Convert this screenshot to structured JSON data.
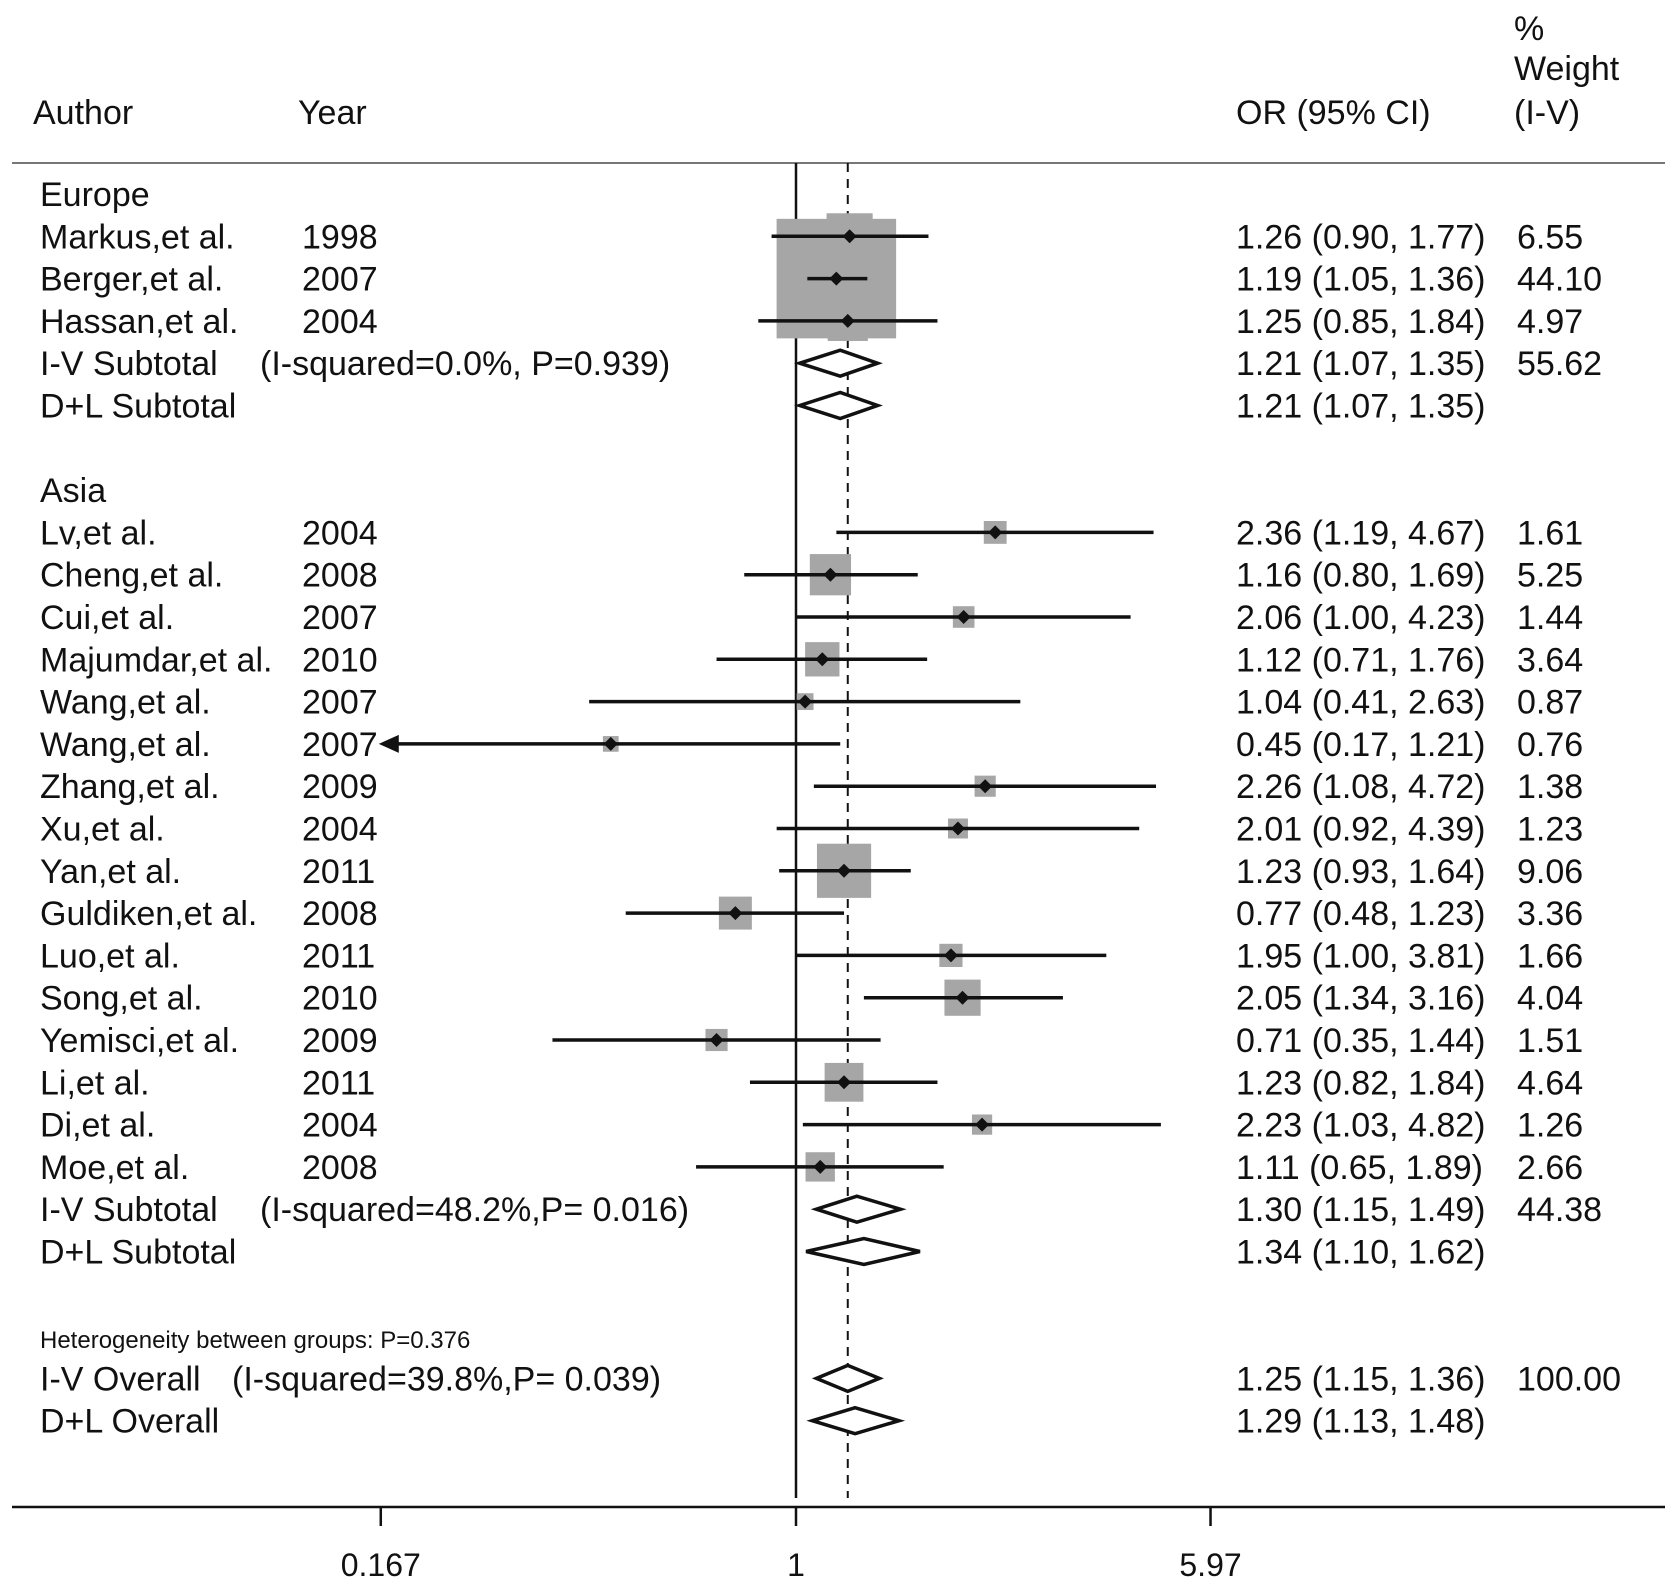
{
  "header": {
    "author": "Author",
    "year": "Year",
    "or_ci": "OR (95% CI)",
    "weight_line1": "%",
    "weight_line2": "Weight",
    "weight_line3": "(I-V)"
  },
  "colors": {
    "ink": "#111111",
    "weight_box": "#a6a6a6",
    "background": "#ffffff"
  },
  "chart_data": {
    "type": "forest",
    "x_scale": "log",
    "xlim": [
      0.167,
      5.97
    ],
    "x_ticks": [
      0.167,
      1,
      5.97
    ],
    "x_tick_labels": [
      "0.167",
      "1",
      "5.97"
    ],
    "null_line": 1,
    "overall_line": 1.25,
    "rows": [
      {
        "kind": "group",
        "label": "Europe"
      },
      {
        "kind": "study",
        "author": "Markus,et al.",
        "year": "1998",
        "or": 1.26,
        "lo": 0.9,
        "hi": 1.77,
        "weight": 6.55,
        "or_text": "1.26 (0.90, 1.77)",
        "weight_text": "6.55"
      },
      {
        "kind": "study",
        "author": "Berger,et al.",
        "year": "2007",
        "or": 1.19,
        "lo": 1.05,
        "hi": 1.36,
        "weight": 44.1,
        "or_text": "1.19 (1.05, 1.36)",
        "weight_text": "44.10"
      },
      {
        "kind": "study",
        "author": "Hassan,et al.",
        "year": "2004",
        "or": 1.25,
        "lo": 0.85,
        "hi": 1.84,
        "weight": 4.97,
        "or_text": "1.25 (0.85, 1.84)",
        "weight_text": "4.97"
      },
      {
        "kind": "summary",
        "label": "I-V Subtotal",
        "stat": "(I-squared=0.0%,  P=0.939)",
        "or": 1.21,
        "lo": 1.07,
        "hi": 1.35,
        "or_text": "1.21 (1.07, 1.35)",
        "weight_text": "55.62"
      },
      {
        "kind": "summary",
        "label": "D+L Subtotal",
        "stat": "",
        "or": 1.21,
        "lo": 1.07,
        "hi": 1.35,
        "or_text": "1.21 (1.07, 1.35)",
        "weight_text": ""
      },
      {
        "kind": "blank"
      },
      {
        "kind": "group",
        "label": "Asia"
      },
      {
        "kind": "study",
        "author": "Lv,et al.",
        "year": "2004",
        "or": 2.36,
        "lo": 1.19,
        "hi": 4.67,
        "weight": 1.61,
        "or_text": "2.36 (1.19, 4.67)",
        "weight_text": "1.61"
      },
      {
        "kind": "study",
        "author": "Cheng,et al.",
        "year": "2008",
        "or": 1.16,
        "lo": 0.8,
        "hi": 1.69,
        "weight": 5.25,
        "or_text": "1.16 (0.80, 1.69)",
        "weight_text": "5.25"
      },
      {
        "kind": "study",
        "author": "Cui,et al.",
        "year": "2007",
        "or": 2.06,
        "lo": 1.0,
        "hi": 4.23,
        "weight": 1.44,
        "or_text": "2.06 (1.00, 4.23)",
        "weight_text": "1.44"
      },
      {
        "kind": "study",
        "author": "Majumdar,et al.",
        "year": "2010",
        "or": 1.12,
        "lo": 0.71,
        "hi": 1.76,
        "weight": 3.64,
        "or_text": "1.12 (0.71, 1.76)",
        "weight_text": "3.64"
      },
      {
        "kind": "study",
        "author": "Wang,et al.",
        "year": "2007",
        "or": 1.04,
        "lo": 0.41,
        "hi": 2.63,
        "weight": 0.87,
        "or_text": "1.04 (0.41, 2.63)",
        "weight_text": "0.87"
      },
      {
        "kind": "study",
        "author": "Wang,et al.",
        "year": "2007",
        "or": 0.45,
        "lo": 0.17,
        "hi": 1.21,
        "weight": 0.76,
        "or_text": "0.45 (0.17, 1.21)",
        "weight_text": "0.76",
        "arrow_left": true
      },
      {
        "kind": "study",
        "author": "Zhang,et al.",
        "year": "2009",
        "or": 2.26,
        "lo": 1.08,
        "hi": 4.72,
        "weight": 1.38,
        "or_text": "2.26 (1.08, 4.72)",
        "weight_text": "1.38"
      },
      {
        "kind": "study",
        "author": "Xu,et al.",
        "year": "2004",
        "or": 2.01,
        "lo": 0.92,
        "hi": 4.39,
        "weight": 1.23,
        "or_text": "2.01 (0.92, 4.39)",
        "weight_text": "1.23"
      },
      {
        "kind": "study",
        "author": "Yan,et al.",
        "year": "2011",
        "or": 1.23,
        "lo": 0.93,
        "hi": 1.64,
        "weight": 9.06,
        "or_text": "1.23 (0.93, 1.64)",
        "weight_text": "9.06"
      },
      {
        "kind": "study",
        "author": "Guldiken,et al.",
        "year": "2008",
        "or": 0.77,
        "lo": 0.48,
        "hi": 1.23,
        "weight": 3.36,
        "or_text": "0.77 (0.48, 1.23)",
        "weight_text": "3.36"
      },
      {
        "kind": "study",
        "author": "Luo,et al.",
        "year": "2011",
        "or": 1.95,
        "lo": 1.0,
        "hi": 3.81,
        "weight": 1.66,
        "or_text": "1.95 (1.00, 3.81)",
        "weight_text": "1.66"
      },
      {
        "kind": "study",
        "author": "Song,et al.",
        "year": "2010",
        "or": 2.05,
        "lo": 1.34,
        "hi": 3.16,
        "weight": 4.04,
        "or_text": "2.05 (1.34, 3.16)",
        "weight_text": "4.04"
      },
      {
        "kind": "study",
        "author": "Yemisci,et al.",
        "year": "2009",
        "or": 0.71,
        "lo": 0.35,
        "hi": 1.44,
        "weight": 1.51,
        "or_text": "0.71 (0.35, 1.44)",
        "weight_text": "1.51"
      },
      {
        "kind": "study",
        "author": "Li,et al.",
        "year": "2011",
        "or": 1.23,
        "lo": 0.82,
        "hi": 1.84,
        "weight": 4.64,
        "or_text": "1.23 (0.82, 1.84)",
        "weight_text": "4.64"
      },
      {
        "kind": "study",
        "author": "Di,et al.",
        "year": "2004",
        "or": 2.23,
        "lo": 1.03,
        "hi": 4.82,
        "weight": 1.26,
        "or_text": "2.23 (1.03, 4.82)",
        "weight_text": "1.26"
      },
      {
        "kind": "study",
        "author": "Moe,et al.",
        "year": "2008",
        "or": 1.11,
        "lo": 0.65,
        "hi": 1.89,
        "weight": 2.66,
        "or_text": "1.11 (0.65, 1.89)",
        "weight_text": "2.66"
      },
      {
        "kind": "summary",
        "label": "I-V Subtotal",
        "stat": "(I-squared=48.2%,P= 0.016)",
        "or": 1.3,
        "lo": 1.15,
        "hi": 1.49,
        "or_text": "1.30 (1.15, 1.49)",
        "weight_text": "44.38"
      },
      {
        "kind": "summary",
        "label": "D+L Subtotal",
        "stat": "",
        "or": 1.34,
        "lo": 1.1,
        "hi": 1.62,
        "or_text": "1.34 (1.10, 1.62)",
        "weight_text": ""
      },
      {
        "kind": "blank"
      },
      {
        "kind": "note",
        "label": "Heterogeneity between groups: P=0.376"
      },
      {
        "kind": "summary",
        "label": "I-V Overall",
        "stat": "(I-squared=39.8%,P= 0.039)",
        "or": 1.25,
        "lo": 1.15,
        "hi": 1.36,
        "or_text": "1.25 (1.15, 1.36)",
        "weight_text": "100.00"
      },
      {
        "kind": "summary",
        "label": "D+L Overall",
        "stat": "",
        "or": 1.29,
        "lo": 1.13,
        "hi": 1.48,
        "or_text": "1.29 (1.13, 1.48)",
        "weight_text": ""
      }
    ]
  }
}
